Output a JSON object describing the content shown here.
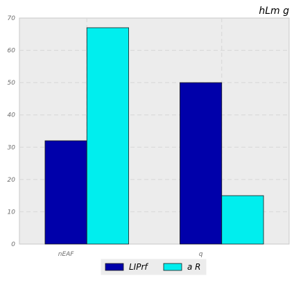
{
  "chart_data": {
    "type": "bar",
    "title": "hLm g",
    "categories": [
      "nEAF",
      "q"
    ],
    "series": [
      {
        "name": "LIPrf",
        "values": [
          32,
          50
        ],
        "color": "#0000aa"
      },
      {
        "name": "a R",
        "values": [
          67,
          15
        ],
        "color": "#00eeee"
      }
    ],
    "ylim": [
      0,
      70
    ],
    "yticks": [
      0,
      10,
      20,
      30,
      40,
      50,
      60,
      70
    ],
    "grid": true,
    "legend": "bottom-center",
    "background": "#ececec"
  }
}
